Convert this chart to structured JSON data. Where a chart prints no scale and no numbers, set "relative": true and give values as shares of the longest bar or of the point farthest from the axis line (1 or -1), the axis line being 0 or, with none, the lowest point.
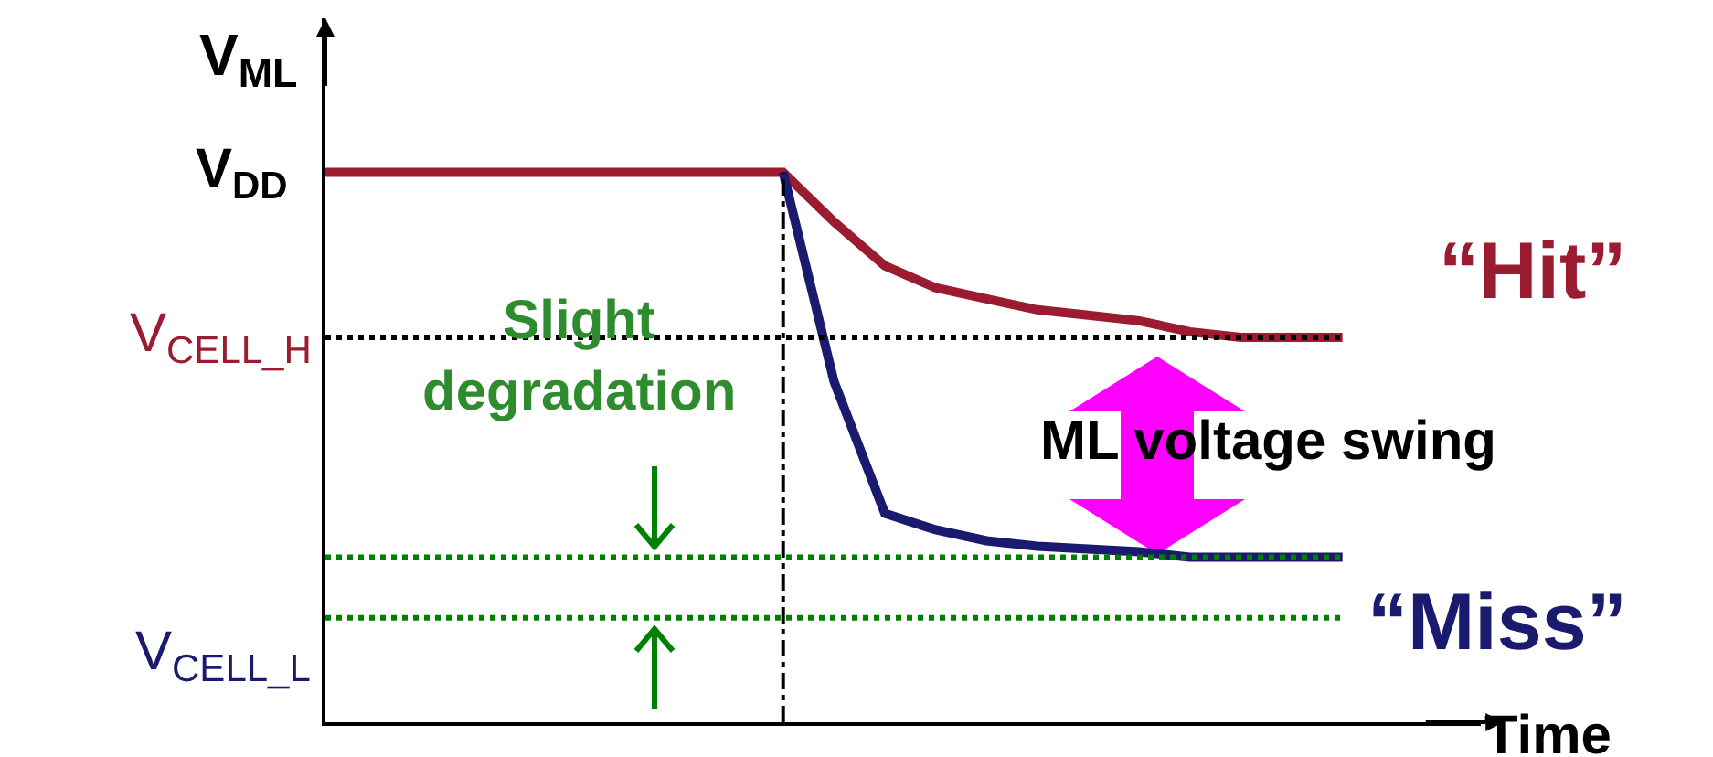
{
  "chart_data": {
    "type": "line",
    "relative": true,
    "xlabel": "Time",
    "ylabel": "V$_{ML}$",
    "categories": [
      null,
      null,
      null,
      null,
      null,
      null,
      null,
      null,
      null,
      null,
      null,
      null,
      null,
      null,
      null,
      null,
      null,
      null,
      null,
      null,
      null
    ],
    "series": [
      {
        "name": "“Hit”",
        "color": "#9b1b30",
        "values": [
          1,
          1,
          1,
          1,
          1,
          1,
          1,
          1,
          1,
          1,
          0.91,
          0.83,
          0.79,
          0.77,
          0.75,
          0.74,
          0.73,
          0.71,
          0.7,
          0.7,
          0.7
        ]
      },
      {
        "name": "“Miss”",
        "color": "#1a1a6e",
        "values": [
          null,
          null,
          null,
          null,
          null,
          null,
          null,
          null,
          null,
          1,
          0.62,
          0.38,
          0.35,
          0.33,
          0.32,
          0.315,
          0.31,
          0.3,
          0.3,
          0.3,
          0.3
        ]
      }
    ],
    "ref_lines": [
      {
        "axis": "y",
        "value": 0.7,
        "label": "V$_{CELL_H}$",
        "color": "#000000",
        "line_style": "dotted"
      },
      {
        "axis": "y",
        "value": 0.19,
        "label": "V$_{CELL_L}$",
        "color": "#008000",
        "line_style": "dotted"
      },
      {
        "axis": "y",
        "value": 0.3,
        "color": "#008000",
        "line_style": "dotted"
      }
    ],
    "annotations": [
      "V$_{DD}$",
      "Slight degradation",
      "ML voltage swing"
    ],
    "legend": false,
    "grid": false,
    "marker": "none",
    "line_style": "solid"
  }
}
